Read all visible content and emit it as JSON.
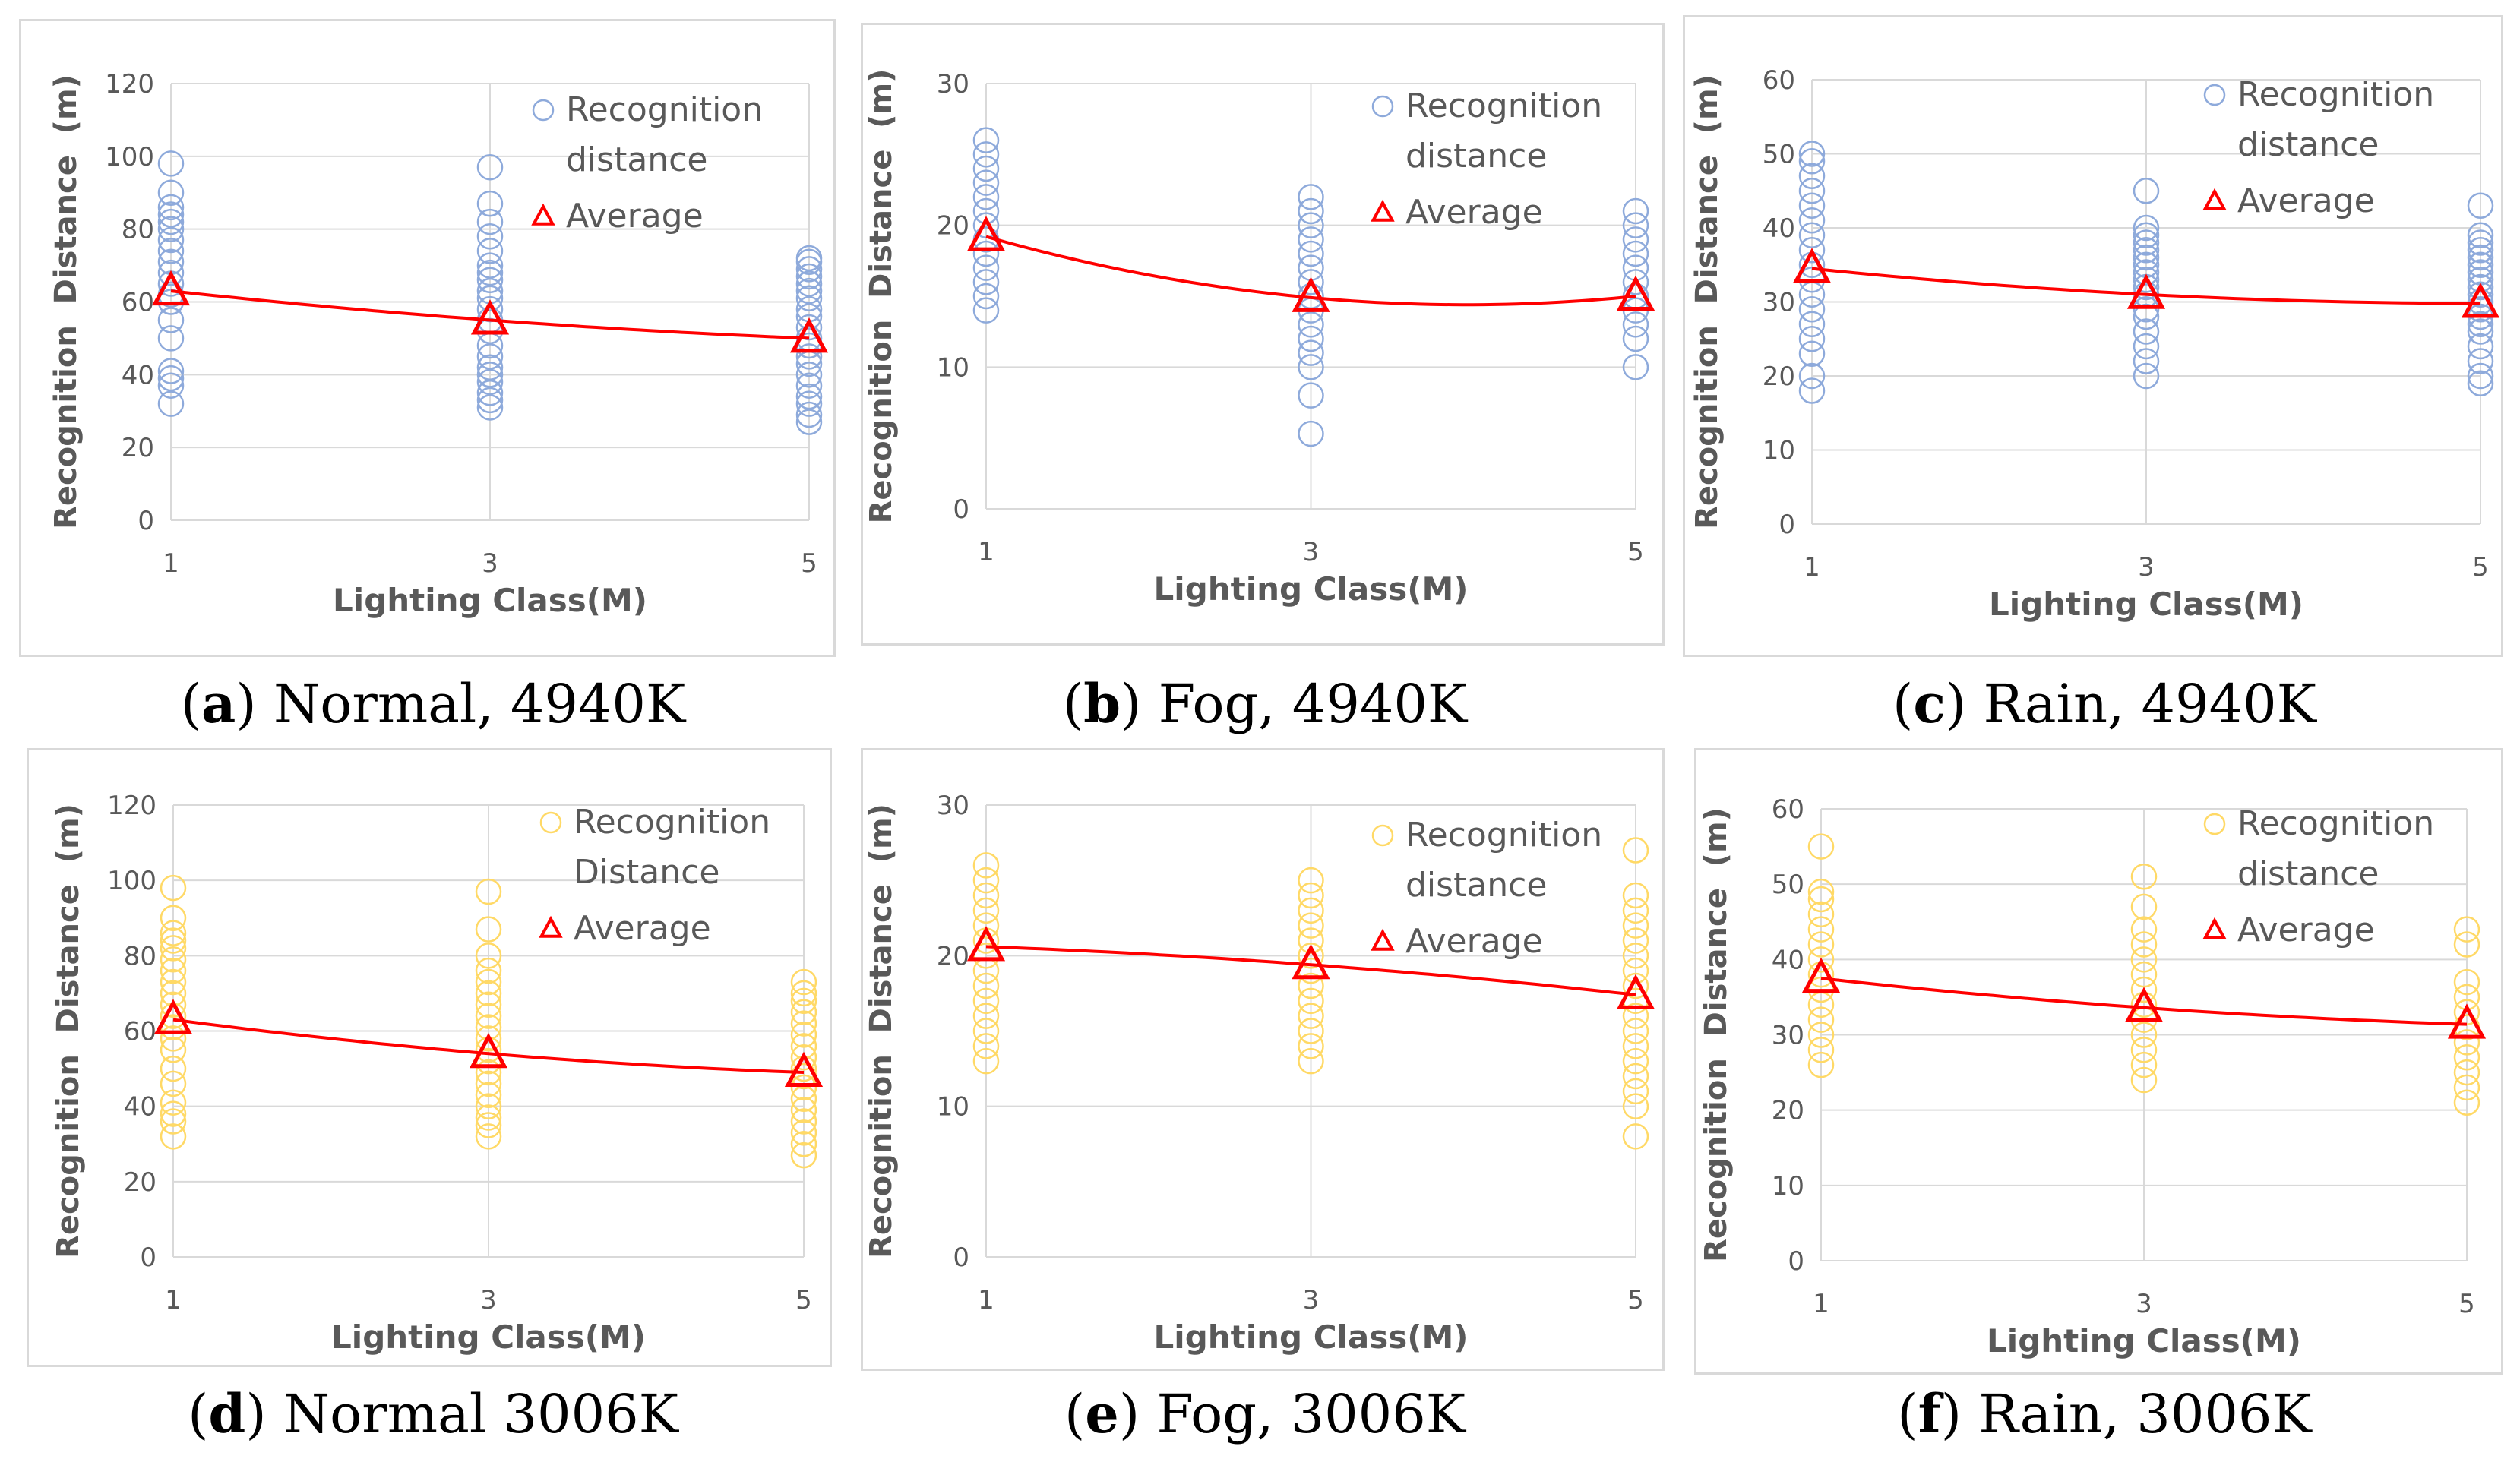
{
  "figure": {
    "captions": [
      {
        "letter": "a",
        "text": "Normal, 4940K"
      },
      {
        "letter": "b",
        "text": "Fog, 4940K"
      },
      {
        "letter": "c",
        "text": "Rain, 4940K"
      },
      {
        "letter": "d",
        "text": "Normal 3006K"
      },
      {
        "letter": "e",
        "text": "Fog, 3006K"
      },
      {
        "letter": "f",
        "text": "Rain, 3006K"
      }
    ]
  },
  "colors": {
    "blue_marker": "#8eaadb",
    "yellow_marker": "#ffd966",
    "average": "#ff0000",
    "grid": "#d9d9d9",
    "text": "#595959"
  },
  "chart_data": [
    {
      "type": "scatter",
      "panel": "a",
      "xlabel": "Lighting Class(M)",
      "ylabel": "Recognition  Distance  (m)",
      "xticks": [
        1,
        3,
        5
      ],
      "ylim": [
        0,
        120
      ],
      "yticks": [
        0,
        20,
        40,
        60,
        80,
        100,
        120
      ],
      "legend": {
        "scatter_label": [
          "Recognition",
          "distance"
        ],
        "average_label": "Average"
      },
      "marker_color": "blue",
      "series": [
        {
          "name": "Recognition distance",
          "x": 1,
          "values": [
            32,
            37,
            39,
            41,
            50,
            55,
            60,
            62,
            65,
            68,
            71,
            74,
            77,
            80,
            82,
            84,
            86,
            90,
            98
          ]
        },
        {
          "name": "Recognition distance",
          "x": 3,
          "values": [
            31,
            33,
            35,
            38,
            40,
            42,
            45,
            48,
            52,
            55,
            58,
            61,
            63,
            66,
            68,
            70,
            74,
            78,
            82,
            87,
            97
          ]
        },
        {
          "name": "Recognition distance",
          "x": 5,
          "values": [
            27,
            29,
            32,
            34,
            37,
            40,
            43,
            45,
            48,
            50,
            53,
            56,
            58,
            61,
            63,
            65,
            67,
            69,
            71,
            72
          ]
        },
        {
          "name": "Average",
          "x": [
            1,
            3,
            5
          ],
          "values": [
            63,
            55,
            50
          ]
        }
      ]
    },
    {
      "type": "scatter",
      "panel": "b",
      "xlabel": "Lighting Class(M)",
      "ylabel": "Recognition  Distance  (m)",
      "xticks": [
        1,
        3,
        5
      ],
      "ylim": [
        0,
        30
      ],
      "yticks": [
        0,
        10,
        20,
        30
      ],
      "legend": {
        "scatter_label": [
          "Recognition",
          "distance"
        ],
        "average_label": "Average"
      },
      "marker_color": "blue",
      "series": [
        {
          "name": "Recognition distance",
          "x": 1,
          "values": [
            14,
            15,
            16,
            17,
            18,
            19,
            20,
            21,
            22,
            23,
            24,
            25,
            26
          ]
        },
        {
          "name": "Recognition distance",
          "x": 3,
          "values": [
            5.3,
            8,
            10,
            11,
            12,
            13,
            14,
            15,
            16,
            17,
            18,
            19,
            20,
            21,
            22
          ]
        },
        {
          "name": "Recognition distance",
          "x": 5,
          "values": [
            10,
            12,
            13,
            14,
            15,
            16,
            17,
            18,
            19,
            20,
            21
          ]
        },
        {
          "name": "Average",
          "x": [
            1,
            3,
            5
          ],
          "values": [
            19.2,
            14.9,
            15.0
          ]
        }
      ]
    },
    {
      "type": "scatter",
      "panel": "c",
      "xlabel": "Lighting Class(M)",
      "ylabel": "Recognition  Distance  (m)",
      "xticks": [
        1,
        3,
        5
      ],
      "ylim": [
        0,
        60
      ],
      "yticks": [
        0,
        10,
        20,
        30,
        40,
        50,
        60
      ],
      "legend": {
        "scatter_label": [
          "Recognition",
          "distance"
        ],
        "average_label": "Average"
      },
      "marker_color": "blue",
      "series": [
        {
          "name": "Recognition distance",
          "x": 1,
          "values": [
            18,
            20,
            23,
            25,
            27,
            29,
            31,
            33,
            35,
            37,
            39,
            41,
            43,
            45,
            47,
            49,
            50
          ]
        },
        {
          "name": "Recognition distance",
          "x": 3,
          "values": [
            20,
            22,
            24,
            26,
            28,
            29,
            31,
            32,
            33,
            34,
            35,
            36,
            37,
            38,
            39,
            40,
            45
          ]
        },
        {
          "name": "Recognition distance",
          "x": 5,
          "values": [
            19,
            20,
            22,
            24,
            26,
            27,
            28,
            29,
            30,
            31,
            32,
            33,
            34,
            35,
            36,
            37,
            38,
            39,
            43
          ]
        },
        {
          "name": "Average",
          "x": [
            1,
            3,
            5
          ],
          "values": [
            34.5,
            31.0,
            29.8
          ]
        }
      ]
    },
    {
      "type": "scatter",
      "panel": "d",
      "xlabel": "Lighting Class(M)",
      "ylabel": "Recognition  Distance  (m)",
      "xticks": [
        1,
        3,
        5
      ],
      "ylim": [
        0,
        120
      ],
      "yticks": [
        0,
        20,
        40,
        60,
        80,
        100,
        120
      ],
      "legend": {
        "scatter_label": [
          "Recognition",
          "Distance"
        ],
        "average_label": "Average"
      },
      "marker_color": "yellow",
      "series": [
        {
          "name": "Recognition Distance",
          "x": 1,
          "values": [
            32,
            36,
            38,
            41,
            46,
            50,
            55,
            58,
            61,
            64,
            67,
            70,
            73,
            76,
            79,
            82,
            84,
            86,
            90,
            98
          ]
        },
        {
          "name": "Recognition Distance",
          "x": 3,
          "values": [
            32,
            35,
            37,
            40,
            43,
            46,
            49,
            52,
            55,
            58,
            61,
            64,
            67,
            70,
            73,
            76,
            80,
            87,
            97
          ]
        },
        {
          "name": "Recognition Distance",
          "x": 5,
          "values": [
            27,
            30,
            33,
            36,
            39,
            42,
            45,
            48,
            50,
            53,
            56,
            59,
            62,
            65,
            68,
            70,
            73
          ]
        },
        {
          "name": "Average",
          "x": [
            1,
            3,
            5
          ],
          "values": [
            63,
            54,
            49
          ]
        }
      ]
    },
    {
      "type": "scatter",
      "panel": "e",
      "xlabel": "Lighting Class(M)",
      "ylabel": "Recognition  Distance  (m)",
      "xticks": [
        1,
        3,
        5
      ],
      "ylim": [
        0,
        30
      ],
      "yticks": [
        0,
        10,
        20,
        30
      ],
      "legend": {
        "scatter_label": [
          "Recognition",
          "distance"
        ],
        "average_label": "Average"
      },
      "marker_color": "yellow",
      "series": [
        {
          "name": "Recognition distance",
          "x": 1,
          "values": [
            13,
            14,
            15,
            16,
            17,
            18,
            19,
            20,
            21,
            22,
            23,
            24,
            25,
            26
          ]
        },
        {
          "name": "Recognition distance",
          "x": 3,
          "values": [
            13,
            14,
            15,
            16,
            17,
            18,
            19,
            20,
            21,
            22,
            23,
            24,
            25
          ]
        },
        {
          "name": "Recognition distance",
          "x": 5,
          "values": [
            8,
            10,
            11,
            12,
            13,
            14,
            15,
            16,
            17,
            18,
            19,
            20,
            21,
            22,
            23,
            24,
            27
          ]
        },
        {
          "name": "Average",
          "x": [
            1,
            3,
            5
          ],
          "values": [
            20.6,
            19.4,
            17.4
          ]
        }
      ]
    },
    {
      "type": "scatter",
      "panel": "f",
      "xlabel": "Lighting Class(M)",
      "ylabel": "Recognition  Distance  (m)",
      "xticks": [
        1,
        3,
        5
      ],
      "ylim": [
        0,
        60
      ],
      "yticks": [
        0,
        10,
        20,
        30,
        40,
        50,
        60
      ],
      "legend": {
        "scatter_label": [
          "Recognition",
          "distance"
        ],
        "average_label": "Average"
      },
      "marker_color": "yellow",
      "series": [
        {
          "name": "Recognition distance",
          "x": 1,
          "values": [
            26,
            28,
            30,
            32,
            34,
            36,
            38,
            40,
            42,
            44,
            46,
            48,
            49,
            55
          ]
        },
        {
          "name": "Recognition distance",
          "x": 3,
          "values": [
            24,
            26,
            28,
            30,
            32,
            34,
            36,
            38,
            40,
            42,
            44,
            47,
            51
          ]
        },
        {
          "name": "Recognition distance",
          "x": 5,
          "values": [
            21,
            23,
            25,
            27,
            29,
            31,
            33,
            35,
            37,
            42,
            44
          ]
        },
        {
          "name": "Average",
          "x": [
            1,
            3,
            5
          ],
          "values": [
            37.5,
            33.6,
            31.4
          ]
        }
      ]
    }
  ]
}
